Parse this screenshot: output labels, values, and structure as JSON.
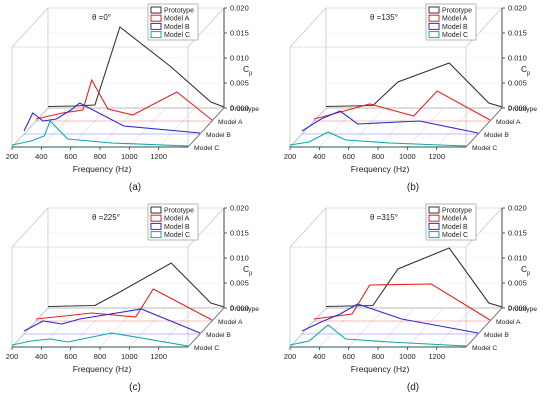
{
  "figure": {
    "legend": [
      "Prototype",
      "Model A",
      "Model B",
      "Model C"
    ],
    "series_colors": [
      "#333333",
      "#e82020",
      "#2b2bd8",
      "#11a8a8"
    ]
  },
  "chart_data": [
    {
      "type": "line",
      "panel_label": "(a)",
      "angle_label": "θ =0°",
      "xlabel": "Frequency (Hz)",
      "zlabel": "C",
      "zlabel_subscript": "p",
      "x_ticks": [
        "200",
        "400",
        "600",
        "800",
        "1000",
        "1200"
      ],
      "z_ticks": [
        "0.000",
        "0.005",
        "0.010",
        "0.015",
        "0.020"
      ],
      "xlim": [
        200,
        1400
      ],
      "zlim": [
        0,
        0.02
      ],
      "legend": [
        "Prototype",
        "Model A",
        "Model B",
        "Model C"
      ],
      "series": [
        {
          "name": "Prototype",
          "x": [
            200,
            380,
            520,
            690,
            1040,
            1310,
            1400
          ],
          "values": [
            0.0003,
            0.0004,
            0.0006,
            0.0162,
            0.0082,
            0.0012,
            0.0002
          ]
        },
        {
          "name": "Model A",
          "x": [
            200,
            380,
            520,
            580,
            690,
            860,
            1160,
            1400
          ],
          "values": [
            0.0004,
            0.0016,
            0.0022,
            0.0082,
            0.0024,
            0.0012,
            0.0058,
            0.0002
          ]
        },
        {
          "name": "Model B",
          "x": [
            200,
            260,
            330,
            420,
            520,
            580,
            880,
            1400
          ],
          "values": [
            0.0006,
            0.0042,
            0.0026,
            0.003,
            0.0048,
            0.0062,
            0.0016,
            0.0002
          ]
        },
        {
          "name": "Model C",
          "x": [
            200,
            330,
            420,
            460,
            580,
            880,
            1400
          ],
          "values": [
            0.0004,
            0.0012,
            0.0022,
            0.0052,
            0.0016,
            0.0008,
            0.0002
          ]
        }
      ]
    },
    {
      "type": "line",
      "panel_label": "(b)",
      "angle_label": "θ =135°",
      "xlabel": "Frequency (Hz)",
      "zlabel": "C",
      "zlabel_subscript": "p",
      "x_ticks": [
        "200",
        "400",
        "600",
        "800",
        "1000",
        "1200"
      ],
      "z_ticks": [
        "0.000",
        "0.005",
        "0.010",
        "0.015",
        "0.020"
      ],
      "xlim": [
        200,
        1400
      ],
      "zlim": [
        0,
        0.02
      ],
      "legend": [
        "Prototype",
        "Model A",
        "Model B",
        "Model C"
      ],
      "series": [
        {
          "name": "Prototype",
          "x": [
            200,
            520,
            690,
            1040,
            1310,
            1400
          ],
          "values": [
            0.0003,
            0.0005,
            0.0052,
            0.009,
            0.001,
            0.0002
          ]
        },
        {
          "name": "Model A",
          "x": [
            200,
            330,
            580,
            880,
            1040,
            1400
          ],
          "values": [
            0.0004,
            0.0014,
            0.0034,
            0.001,
            0.006,
            0.0002
          ]
        },
        {
          "name": "Model B",
          "x": [
            200,
            330,
            460,
            580,
            1000,
            1400
          ],
          "values": [
            0.0006,
            0.003,
            0.0046,
            0.002,
            0.0026,
            0.0002
          ]
        },
        {
          "name": "Model C",
          "x": [
            200,
            330,
            460,
            580,
            880,
            1400
          ],
          "values": [
            0.0004,
            0.001,
            0.003,
            0.0014,
            0.0008,
            0.0002
          ]
        }
      ]
    },
    {
      "type": "line",
      "panel_label": "(c)",
      "angle_label": "θ =225°",
      "xlabel": "Frequency (Hz)",
      "zlabel": "C",
      "zlabel_subscript": "p",
      "x_ticks": [
        "200",
        "400",
        "600",
        "800",
        "1000",
        "1200"
      ],
      "z_ticks": [
        "0.000",
        "0.005",
        "0.010",
        "0.015",
        "0.020"
      ],
      "xlim": [
        200,
        1400
      ],
      "zlim": [
        0,
        0.02
      ],
      "legend": [
        "Prototype",
        "Model A",
        "Model B",
        "Model C"
      ],
      "series": [
        {
          "name": "Prototype",
          "x": [
            200,
            520,
            690,
            1040,
            1310,
            1400
          ],
          "values": [
            0.0003,
            0.0005,
            0.0032,
            0.009,
            0.001,
            0.0002
          ]
        },
        {
          "name": "Model A",
          "x": [
            200,
            460,
            580,
            880,
            1000,
            1400
          ],
          "values": [
            0.0004,
            0.0012,
            0.0016,
            0.0008,
            0.0064,
            0.0002
          ]
        },
        {
          "name": "Model B",
          "x": [
            200,
            330,
            460,
            580,
            1000,
            1400
          ],
          "values": [
            0.0006,
            0.0026,
            0.002,
            0.003,
            0.005,
            0.0002
          ]
        },
        {
          "name": "Model C",
          "x": [
            200,
            330,
            460,
            580,
            880,
            1400
          ],
          "values": [
            0.0004,
            0.0012,
            0.0016,
            0.001,
            0.0028,
            0.0002
          ]
        }
      ]
    },
    {
      "type": "line",
      "panel_label": "(d)",
      "angle_label": "θ =315°",
      "xlabel": "Frequency (Hz)",
      "zlabel": "C",
      "zlabel_subscript": "p",
      "x_ticks": [
        "200",
        "400",
        "600",
        "800",
        "1000",
        "1200"
      ],
      "z_ticks": [
        "0.000",
        "0.005",
        "0.010",
        "0.015",
        "0.020"
      ],
      "xlim": [
        200,
        1400
      ],
      "zlim": [
        0,
        0.02
      ],
      "legend": [
        "Prototype",
        "Model A",
        "Model B",
        "Model C"
      ],
      "series": [
        {
          "name": "Prototype",
          "x": [
            200,
            520,
            690,
            1040,
            1310,
            1400
          ],
          "values": [
            0.0003,
            0.0005,
            0.0078,
            0.012,
            0.001,
            0.0002
          ]
        },
        {
          "name": "Model A",
          "x": [
            200,
            460,
            580,
            1000,
            1400
          ],
          "values": [
            0.0004,
            0.0014,
            0.0072,
            0.0074,
            0.0002
          ]
        },
        {
          "name": "Model B",
          "x": [
            200,
            330,
            460,
            580,
            880,
            1400
          ],
          "values": [
            0.0006,
            0.0024,
            0.004,
            0.006,
            0.003,
            0.0002
          ]
        },
        {
          "name": "Model C",
          "x": [
            200,
            330,
            460,
            580,
            880,
            1400
          ],
          "values": [
            0.0004,
            0.0012,
            0.0044,
            0.0016,
            0.001,
            0.0002
          ]
        }
      ]
    }
  ]
}
